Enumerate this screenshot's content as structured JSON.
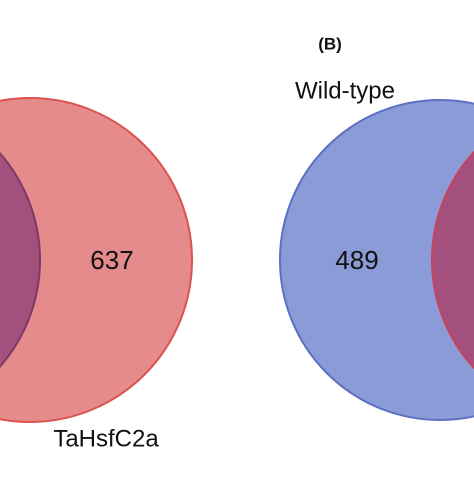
{
  "panel_label": "(B)",
  "left_venn": {
    "count_right_only": "637",
    "set_label": "TaHsfC2a"
  },
  "right_venn": {
    "set_label": "Wild-type",
    "count_left_only": "489"
  }
}
